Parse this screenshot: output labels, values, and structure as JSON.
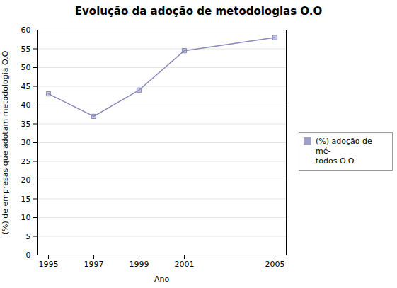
{
  "chart_data": {
    "type": "line",
    "title": "Evolução da adoção de metodologias O.O",
    "xlabel": "Ano",
    "ylabel": "(%) de empresas que adotam metodologia O.O",
    "x": [
      1995,
      1997,
      1999,
      2001,
      2005
    ],
    "series": [
      {
        "name": "(%) adoção de mé-\ntodos O.O",
        "color": "#8888bb",
        "values": [
          43,
          37,
          44,
          54.5,
          58
        ]
      }
    ],
    "xlim": [
      1994.5,
      2005.5
    ],
    "ylim": [
      0,
      60
    ],
    "xticks": [
      1995,
      1997,
      1999,
      2001,
      2005
    ],
    "yticks": [
      0,
      5,
      10,
      15,
      20,
      25,
      30,
      35,
      40,
      45,
      50,
      55,
      60
    ],
    "grid": "y",
    "legend": "right",
    "marker": "square"
  }
}
